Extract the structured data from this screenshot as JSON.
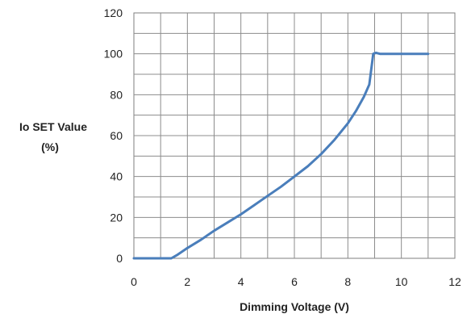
{
  "chart_data": {
    "type": "line",
    "title": "",
    "xlabel": "Dimming Voltage (V)",
    "ylabel_lines": [
      "Io SET Value",
      "(%)"
    ],
    "xlim": [
      0,
      12
    ],
    "ylim": [
      0,
      120
    ],
    "x_ticks": [
      "0",
      "2",
      "4",
      "6",
      "8",
      "10",
      "12"
    ],
    "y_ticks": [
      "0",
      "20",
      "40",
      "60",
      "80",
      "100",
      "120"
    ],
    "x_minor_step": 1,
    "y_minor_step": 10,
    "grid": true,
    "legend": "none",
    "series": [
      {
        "color": "#4a7ebb",
        "points": [
          [
            0,
            0
          ],
          [
            1.4,
            0
          ],
          [
            1.6,
            1.5
          ],
          [
            2.0,
            5
          ],
          [
            2.5,
            9
          ],
          [
            3.0,
            13.5
          ],
          [
            3.5,
            17.5
          ],
          [
            4.0,
            21.5
          ],
          [
            4.5,
            26
          ],
          [
            5.0,
            30.5
          ],
          [
            5.5,
            35
          ],
          [
            6.0,
            40
          ],
          [
            6.5,
            45
          ],
          [
            7.0,
            51
          ],
          [
            7.5,
            58
          ],
          [
            8.0,
            66
          ],
          [
            8.3,
            72
          ],
          [
            8.6,
            79
          ],
          [
            8.8,
            85
          ],
          [
            8.95,
            100
          ],
          [
            9.05,
            100.5
          ],
          [
            9.2,
            100
          ],
          [
            11.0,
            100
          ]
        ]
      }
    ]
  }
}
